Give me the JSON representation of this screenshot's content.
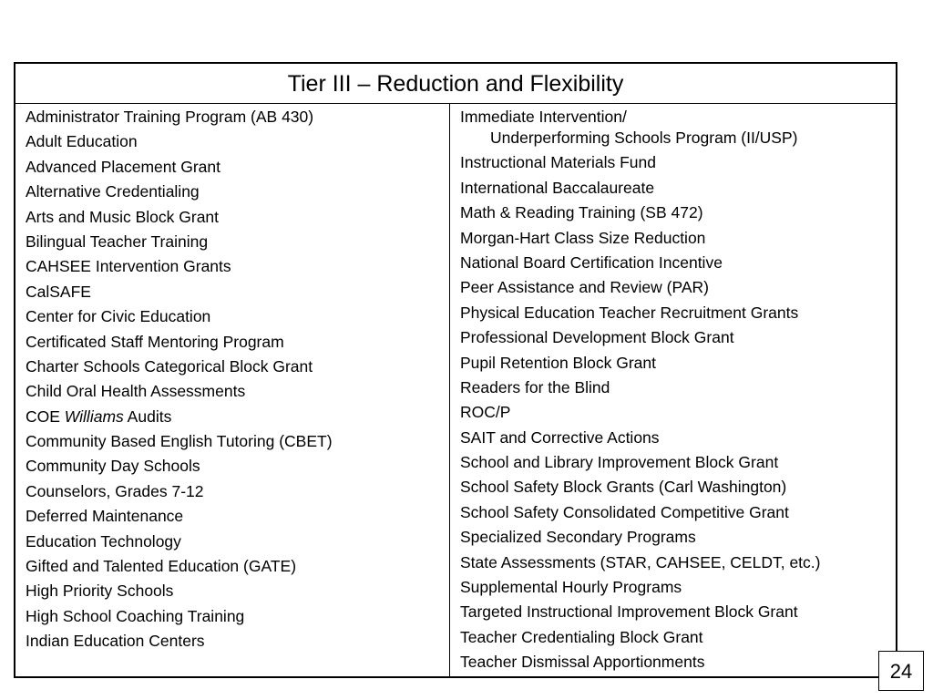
{
  "table": {
    "title": "Tier III – Reduction and Flexibility",
    "left_items": [
      "Administrator Training Program (AB 430)",
      "Adult Education",
      "Advanced Placement Grant",
      "Alternative Credentialing",
      "Arts and Music Block Grant",
      "Bilingual Teacher Training",
      "CAHSEE Intervention Grants",
      "CalSAFE",
      "Center for Civic Education",
      "Certificated Staff Mentoring Program",
      "Charter Schools Categorical Block Grant",
      "Child Oral Health Assessments",
      "COE Williams Audits",
      "Community Based English Tutoring (CBET)",
      "Community Day Schools",
      "Counselors, Grades 7-12",
      "Deferred Maintenance",
      "Education Technology",
      "Gifted and Talented Education (GATE)",
      "High Priority Schools",
      "High School Coaching Training",
      "Indian Education Centers"
    ],
    "coe_prefix": "COE ",
    "coe_italic": "Williams",
    "coe_suffix": " Audits",
    "right_first_line1": "Immediate Intervention/",
    "right_first_line2": "Underperforming Schools Program (II/USP)",
    "right_items": [
      "Instructional Materials Fund",
      "International Baccalaureate",
      "Math & Reading Training (SB 472)",
      "Morgan-Hart Class Size Reduction",
      "National Board Certification Incentive",
      "Peer Assistance and Review (PAR)",
      "Physical Education Teacher Recruitment Grants",
      "Professional Development Block Grant",
      "Pupil Retention Block Grant",
      "Readers for the Blind",
      "ROC/P",
      "SAIT and Corrective Actions",
      "School and Library Improvement Block Grant",
      "School Safety Block Grants (Carl Washington)",
      "School Safety Consolidated Competitive Grant",
      "Specialized Secondary Programs",
      "State Assessments (STAR, CAHSEE, CELDT, etc.)",
      "Supplemental Hourly Programs",
      "Targeted Instructional Improvement Block Grant",
      "Teacher Credentialing Block Grant",
      "Teacher Dismissal Apportionments"
    ]
  },
  "page_number": "24"
}
